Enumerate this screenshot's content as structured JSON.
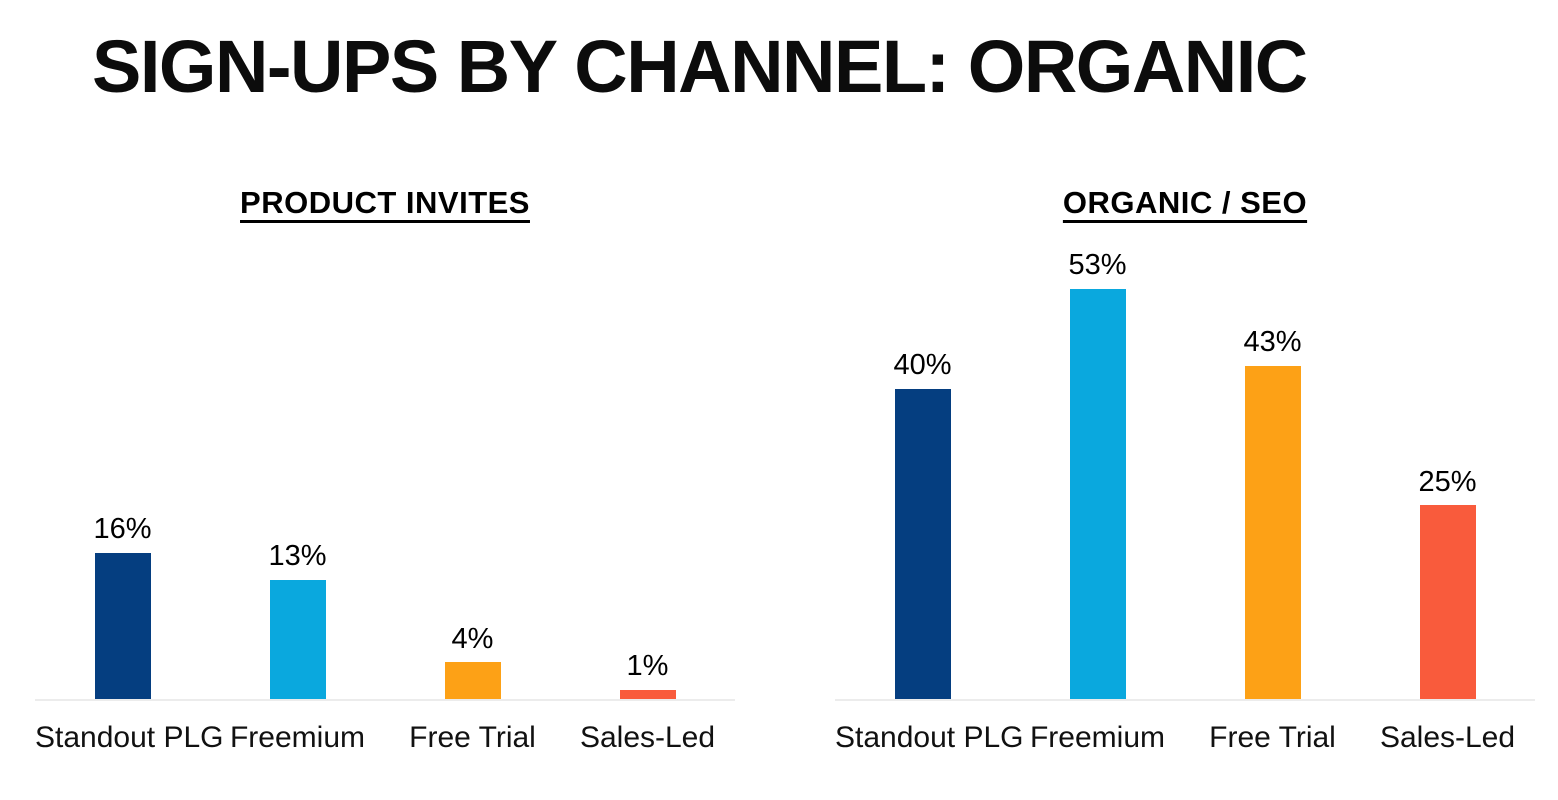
{
  "page": {
    "title": "SIGN-UPS BY CHANNEL: ORGANIC",
    "background": "#ffffff"
  },
  "palette": {
    "title_text": "#0c0c0c",
    "label_text": "#000000",
    "category_text": "#111111",
    "axis_line": "#ececec",
    "navy": "#053e80",
    "cyan": "#0aa8de",
    "orange": "#fda116",
    "coral": "#f95b3c"
  },
  "chart_data": [
    {
      "type": "bar",
      "title": "PRODUCT INVITES",
      "categories": [
        "Standout PLG",
        "Freemium",
        "Free Trial",
        "Sales-Led"
      ],
      "values": [
        16,
        13,
        4,
        1
      ],
      "value_labels": [
        "16%",
        "13%",
        "4%",
        "1%"
      ],
      "bar_colors": [
        "#053e80",
        "#0aa8de",
        "#fda116",
        "#f95b3c"
      ],
      "xlabel": "",
      "ylabel": "",
      "ylim": [
        0,
        50
      ],
      "grid": false,
      "legend": "none",
      "axis_ticks": "hidden"
    },
    {
      "type": "bar",
      "title": "ORGANIC / SEO",
      "categories": [
        "Standout PLG",
        "Freemium",
        "Free Trial",
        "Sales-Led"
      ],
      "values": [
        40,
        53,
        43,
        25
      ],
      "value_labels": [
        "40%",
        "53%",
        "43%",
        "25%"
      ],
      "bar_colors": [
        "#053e80",
        "#0aa8de",
        "#fda116",
        "#f95b3c"
      ],
      "xlabel": "",
      "ylabel": "",
      "ylim": [
        0,
        59
      ],
      "grid": false,
      "legend": "none",
      "axis_ticks": "hidden"
    }
  ]
}
